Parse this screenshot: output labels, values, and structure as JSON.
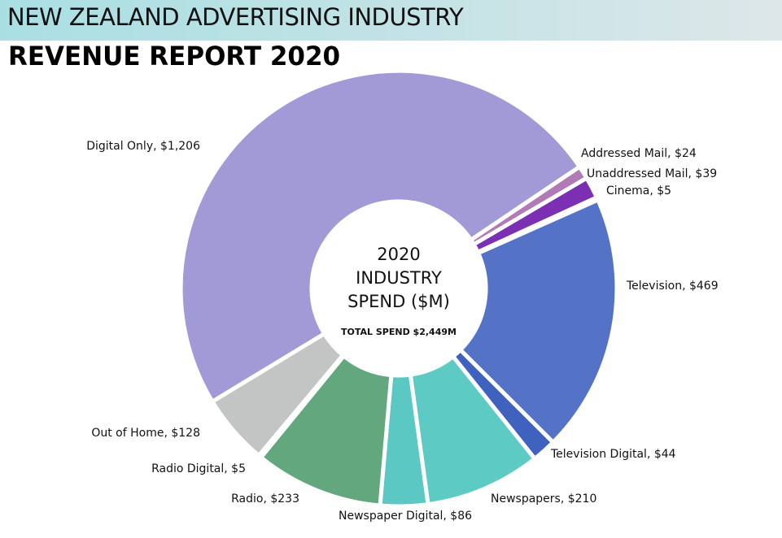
{
  "header": {
    "line1": "NEW ZEALAND ADVERTISING INDUSTRY",
    "line2": "REVENUE REPORT 2020"
  },
  "chart_data": {
    "type": "pie",
    "center_text": [
      "2020",
      "INDUSTRY",
      "SPEND ($M)"
    ],
    "center_subtext": "TOTAL SPEND $2,449M",
    "total": 2449,
    "slices": [
      {
        "name": "Addressed Mail",
        "value": 24,
        "label": "Addressed Mail, $24",
        "color": "#b07ab5"
      },
      {
        "name": "Unaddressed Mail",
        "value": 39,
        "label": "Unaddressed Mail, $39",
        "color": "#7b30b3"
      },
      {
        "name": "Cinema",
        "value": 5,
        "label": "Cinema, $5",
        "color": "#8c8c8c"
      },
      {
        "name": "Television",
        "value": 469,
        "label": "Television, $469",
        "color": "#5473c6"
      },
      {
        "name": "Television Digital",
        "value": 44,
        "label": "Television Digital, $44",
        "color": "#3f62bf"
      },
      {
        "name": "Newspapers",
        "value": 210,
        "label": "Newspapers, $210",
        "color": "#5ecac4"
      },
      {
        "name": "Newspaper Digital",
        "value": 86,
        "label": "Newspaper Digital, $86",
        "color": "#5bc8c4"
      },
      {
        "name": "Radio",
        "value": 233,
        "label": "Radio, $233",
        "color": "#62a77d"
      },
      {
        "name": "Radio Digital",
        "value": 5,
        "label": "Radio Digital, $5",
        "color": "#b9bdb8"
      },
      {
        "name": "Out of Home",
        "value": 128,
        "label": "Out of Home, $128",
        "color": "#c2c5c3"
      },
      {
        "name": "Digital Only",
        "value": 1206,
        "label": "Digital Only, $1,206",
        "color": "#a19ad7"
      }
    ]
  }
}
